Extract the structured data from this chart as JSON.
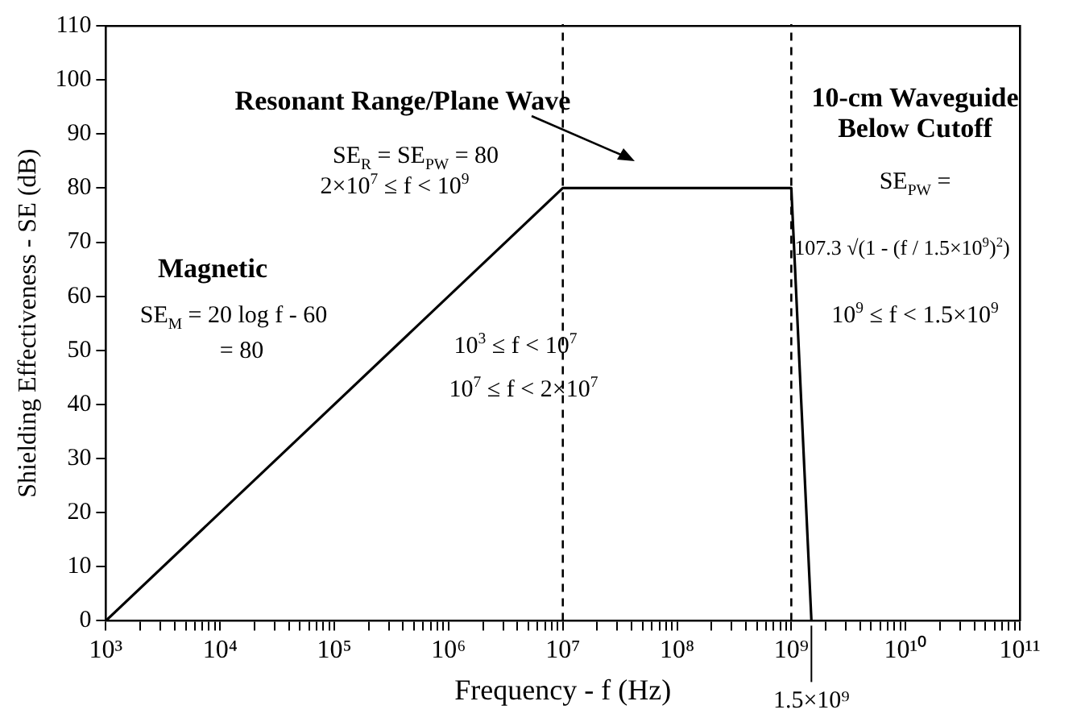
{
  "chart_data": {
    "type": "line",
    "xlabel": "Frequency - f (Hz)",
    "ylabel": "Shielding Effectiveness - SE (dB)",
    "log": "x",
    "grid": false,
    "legend": false,
    "marker": "none",
    "line_style": "solid",
    "x": [
      1000,
      10000000,
      1000000000,
      1500000000
    ],
    "series": [
      {
        "color": "#000000",
        "values": [
          0,
          80,
          80,
          0
        ]
      }
    ],
    "xlim": [
      1000,
      100000000000
    ],
    "ylim": [
      0,
      110
    ],
    "yticks": [
      0,
      10,
      20,
      30,
      40,
      50,
      60,
      70,
      80,
      90,
      100,
      110
    ],
    "xticks": [
      {
        "value": 1000,
        "label": "10³"
      },
      {
        "value": 2000,
        "label": null
      },
      {
        "value": 3000,
        "label": null
      },
      {
        "value": 4000,
        "label": null
      },
      {
        "value": 5000,
        "label": null
      },
      {
        "value": 6000,
        "label": null
      },
      {
        "value": 7000,
        "label": null
      },
      {
        "value": 8000,
        "label": null
      },
      {
        "value": 9000,
        "label": null
      },
      {
        "value": 10000,
        "label": "10⁴"
      },
      {
        "value": 20000,
        "label": null
      },
      {
        "value": 30000,
        "label": null
      },
      {
        "value": 40000,
        "label": null
      },
      {
        "value": 50000,
        "label": null
      },
      {
        "value": 60000,
        "label": null
      },
      {
        "value": 70000,
        "label": null
      },
      {
        "value": 80000,
        "label": null
      },
      {
        "value": 90000,
        "label": null
      },
      {
        "value": 100000,
        "label": "10⁵"
      },
      {
        "value": 200000,
        "label": null
      },
      {
        "value": 300000,
        "label": null
      },
      {
        "value": 400000,
        "label": null
      },
      {
        "value": 500000,
        "label": null
      },
      {
        "value": 600000,
        "label": null
      },
      {
        "value": 700000,
        "label": null
      },
      {
        "value": 800000,
        "label": null
      },
      {
        "value": 900000,
        "label": null
      },
      {
        "value": 1000000,
        "label": "10⁶"
      },
      {
        "value": 2000000,
        "label": null
      },
      {
        "value": 3000000,
        "label": null
      },
      {
        "value": 4000000,
        "label": null
      },
      {
        "value": 5000000,
        "label": null
      },
      {
        "value": 6000000,
        "label": null
      },
      {
        "value": 7000000,
        "label": null
      },
      {
        "value": 8000000,
        "label": null
      },
      {
        "value": 9000000,
        "label": null
      },
      {
        "value": 10000000,
        "label": "10⁷"
      },
      {
        "value": 20000000,
        "label": null
      },
      {
        "value": 30000000,
        "label": null
      },
      {
        "value": 40000000,
        "label": null
      },
      {
        "value": 50000000,
        "label": null
      },
      {
        "value": 60000000,
        "label": null
      },
      {
        "value": 70000000,
        "label": null
      },
      {
        "value": 80000000,
        "label": null
      },
      {
        "value": 90000000,
        "label": null
      },
      {
        "value": 100000000,
        "label": "10⁸"
      },
      {
        "value": 200000000,
        "label": null
      },
      {
        "value": 300000000,
        "label": null
      },
      {
        "value": 400000000,
        "label": null
      },
      {
        "value": 500000000,
        "label": null
      },
      {
        "value": 600000000,
        "label": null
      },
      {
        "value": 700000000,
        "label": null
      },
      {
        "value": 800000000,
        "label": null
      },
      {
        "value": 900000000,
        "label": null
      },
      {
        "value": 1000000000,
        "label": "10⁹"
      },
      {
        "value": 2000000000,
        "label": null
      },
      {
        "value": 3000000000,
        "label": null
      },
      {
        "value": 4000000000,
        "label": null
      },
      {
        "value": 5000000000,
        "label": null
      },
      {
        "value": 6000000000,
        "label": null
      },
      {
        "value": 7000000000,
        "label": null
      },
      {
        "value": 8000000000,
        "label": null
      },
      {
        "value": 9000000000,
        "label": null
      },
      {
        "value": 10000000000,
        "label": "10¹⁰"
      },
      {
        "value": 20000000000,
        "label": null
      },
      {
        "value": 30000000000,
        "label": null
      },
      {
        "value": 40000000000,
        "label": null
      },
      {
        "value": 50000000000,
        "label": null
      },
      {
        "value": 60000000000,
        "label": null
      },
      {
        "value": 70000000000,
        "label": null
      },
      {
        "value": 80000000000,
        "label": null
      },
      {
        "value": 90000000000,
        "label": null
      },
      {
        "value": 100000000000,
        "label": "10¹¹"
      }
    ],
    "ref_lines": [
      {
        "axis": "x",
        "value": 10000000,
        "line_style": "dashed",
        "color": "#000000"
      },
      {
        "axis": "x",
        "value": 1000000000,
        "line_style": "dashed",
        "color": "#000000"
      },
      {
        "axis": "x",
        "value": 1500000000,
        "label": "1.5×10⁹",
        "line_style": "solid",
        "color": "#000000"
      }
    ],
    "annotations": [
      "Resonant Range/Plane Wave",
      "SE$_{R}$ = SE$_{PW}$ = 80",
      "2×10$^{7}$ ≤ f < 10$^{9}$",
      "Magnetic",
      "SE$_{M}$ = 20 log f - 60",
      "= 80",
      "10$^{3}$ ≤ f < 10$^{7}$",
      "10$^{7}$ ≤ f < 2×10$^{7}$",
      "10-cm Waveguide",
      "Below Cutoff",
      "SE$_{PW}$ =",
      "107.3 √(1 - (f / 1.5×10$^{9}$)$^{2}$)",
      "10$^{9}$ ≤ f < 1.5×10$^{9}$"
    ]
  }
}
